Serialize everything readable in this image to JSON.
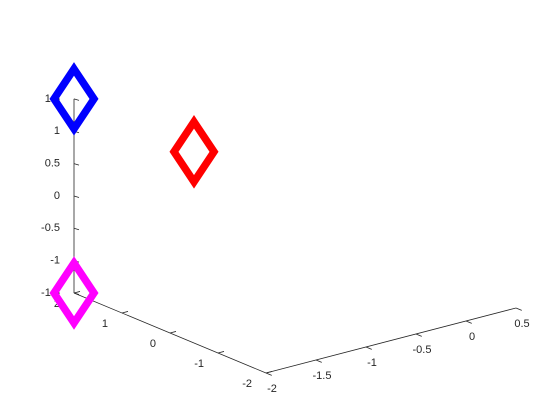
{
  "chart_data": {
    "type": "scatter",
    "view": "3d",
    "grid": false,
    "xlabel": "",
    "ylabel": "",
    "zlabel": "",
    "xlim": [
      -2,
      0.5
    ],
    "ylim": [
      -2,
      2
    ],
    "zlim": [
      -1.5,
      1.5
    ],
    "x_ticks": [
      "-2",
      "-1.5",
      "-1",
      "-0.5",
      "0",
      "0.5"
    ],
    "y_ticks": [
      "-2",
      "-1",
      "0",
      "1",
      "2"
    ],
    "z_ticks": [
      "-1.5",
      "-1",
      "-0.5",
      "0",
      "0.5",
      "1",
      "1.5"
    ],
    "marker": "diamond",
    "series": [
      {
        "color": "#0000ff",
        "points": [
          {
            "x": -2,
            "y": 2,
            "z": 1.5
          }
        ]
      },
      {
        "color": "#ff0000",
        "points": [
          {
            "x": -0.8,
            "y": 2,
            "z": 0.2
          }
        ]
      },
      {
        "color": "#ff00ff",
        "points": [
          {
            "x": -2,
            "y": 2,
            "z": -1.5
          }
        ]
      }
    ]
  }
}
